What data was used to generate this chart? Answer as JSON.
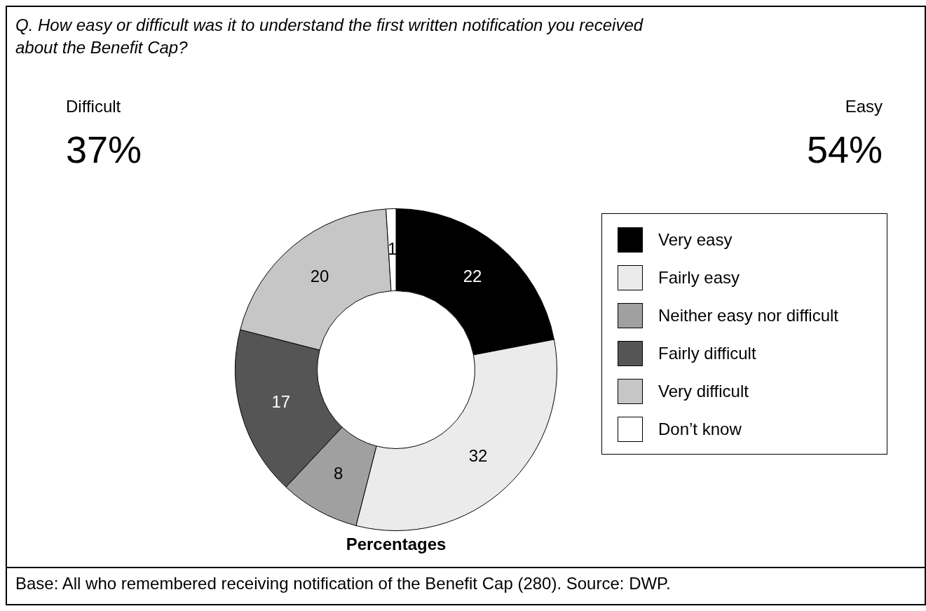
{
  "chart_data": {
    "type": "donut",
    "title": "Q.  How easy or difficult was it to understand the first written notification you received about the Benefit Cap?",
    "categories": [
      "Very easy",
      "Fairly easy",
      "Neither easy nor difficult",
      "Fairly difficult",
      "Very difficult",
      "Don’t know"
    ],
    "values": [
      22,
      32,
      8,
      17,
      20,
      1
    ],
    "colors": [
      "#000000",
      "#ebebeb",
      "#a0a0a0",
      "#555555",
      "#c6c6c6",
      "#ffffff"
    ],
    "data_labels": true,
    "legend": "right",
    "annotations": [
      "Difficult",
      "37%",
      "Easy",
      "54%",
      "Percentages",
      "Base: All who remembered receiving notification of the Benefit Cap (280). Source: DWP."
    ]
  }
}
